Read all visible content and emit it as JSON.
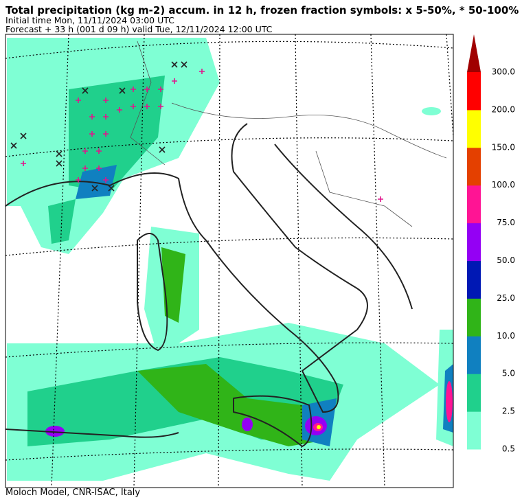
{
  "header": {
    "title": "Total precipitation (kg m-2) accum. in 12 h, frozen fraction symbols: x 5-50%, * 50-100%",
    "initial_time": "Initial time  Mon, 11/11/2024  03:00 UTC",
    "forecast": "Forecast  +  33 h  (001 d 09 h)  valid Tue, 12/11/2024 12:00 UTC"
  },
  "colorbar": {
    "labels": [
      "0.5",
      "2.5",
      "5.0",
      "10.0",
      "25.0",
      "50.0",
      "75.0",
      "100.0",
      "150.0",
      "200.0",
      "300.0"
    ],
    "colors": [
      "#7fffd4",
      "#20d08c",
      "#1080c0",
      "#30b418",
      "#0018b4",
      "#9400f4",
      "#ff1494",
      "#e44000",
      "#ffff00",
      "#ff0000"
    ],
    "extend_color": "#a00000"
  },
  "footer": "Moloch Model, CNR-ISAC, Italy"
}
